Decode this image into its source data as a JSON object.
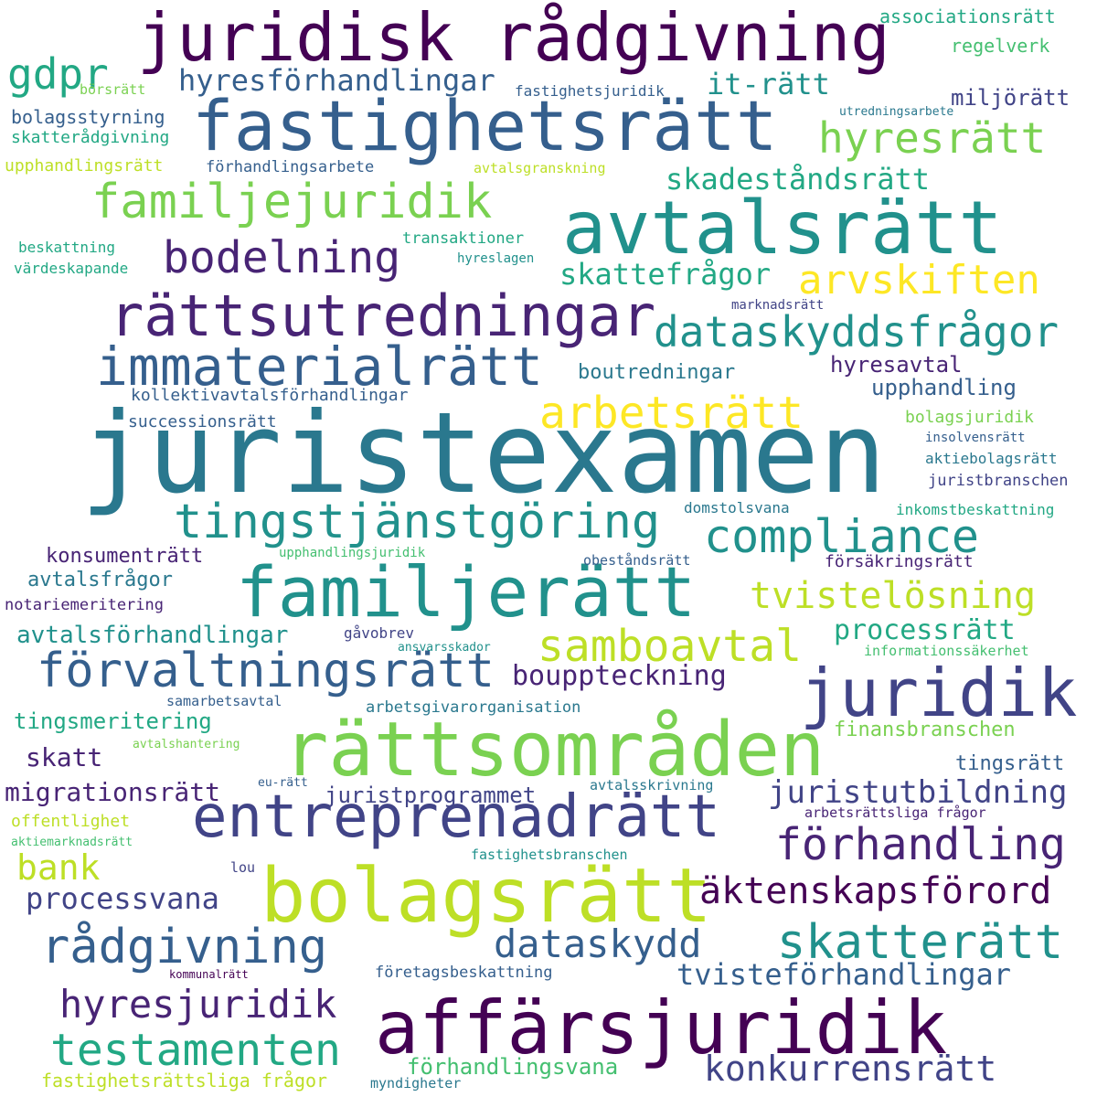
{
  "words": [
    "juristexamen",
    "juridisk rådgivning",
    "fastighetsrätt",
    "avtalsrätt",
    "rättsområden",
    "bolagsrätt",
    "affärsjuridik",
    "familjerätt",
    "juridik",
    "entreprenadrätt",
    "rättsutredningar",
    "immaterialrätt",
    "tingstjänstgöring",
    "förvaltningsrätt",
    "familjejuridik",
    "compliance",
    "skatterätt",
    "rådgivning",
    "arbetsrätt",
    "dataskyddsfrågor",
    "arvskiften",
    "hyresrätt",
    "bodelning",
    "samboavtal",
    "testamenten",
    "förhandling",
    "dataskydd",
    "äktenskapsförord",
    "tvistelösning",
    "hyresjuridik",
    "gdpr",
    "konkurrensrätt",
    "juristutbildning",
    "hyresförhandlingar",
    "bouppteckning",
    "tvisteförhandlingar",
    "skadeståndsrätt",
    "skattefrågor",
    "it-rätt",
    "processrätt",
    "bank",
    "migrationsrätt",
    "processvana",
    "avtalsförhandlingar",
    "juristprogrammet",
    "förhandlingsvana",
    "boutredningar",
    "upphandling",
    "tingsmeritering",
    "hyresavtal",
    "skatt",
    "miljörätt",
    "avtalsfrågor",
    "konsumenträtt",
    "finansbranschen",
    "tingsrätt",
    "fastighetsrättsliga frågor",
    "associationsrätt",
    "regelverk",
    "bolagsstyrning",
    "skatterådgivning",
    "upphandlingsrätt",
    "förhandlingsarbete",
    "transaktioner",
    "kollektivavtalsförhandlingar",
    "successionsrätt",
    "bolagsjuridik",
    "juristbranschen",
    "arbetsgivarorganisation",
    "notariemeritering",
    "företagsbeskattning",
    "offentlighet",
    "domstolsvana",
    "inkomstbeskattning",
    "försäkringsrätt",
    "fastighetsjuridik",
    "börsrätt",
    "avtalsgranskning",
    "beskattning",
    "värdeskapande",
    "aktiebolagsrätt",
    "insolvensrätt",
    "samarbetsavtal",
    "gåvobrev",
    "informationssäkerhet",
    "fastighetsbranschen",
    "avtalsskrivning",
    "arbetsrättsliga frågor",
    "obeståndsrätt",
    "myndigheter",
    "utredningsarbete",
    "marknadsrätt",
    "hyreslagen",
    "upphandlingsjuridik",
    "ansvarsskador",
    "avtalshantering",
    "eu-rätt",
    "aktiemarknadsrätt",
    "lou",
    "kommunalrätt"
  ]
}
